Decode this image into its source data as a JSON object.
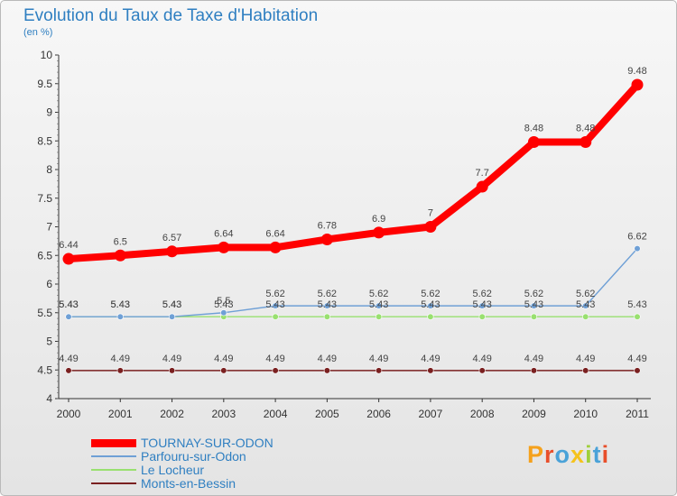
{
  "chart_data": {
    "type": "line",
    "title": "Evolution du Taux de Taxe d'Habitation",
    "subtitle": "(en %)",
    "xlabel": "",
    "ylabel": "(en %)",
    "ylim": [
      4,
      10
    ],
    "yticks": [
      "4",
      "4.5",
      "5",
      "5.5",
      "6",
      "6.5",
      "7",
      "7.5",
      "8",
      "8.5",
      "9",
      "9.5",
      "10"
    ],
    "categories": [
      "2000",
      "2001",
      "2002",
      "2003",
      "2004",
      "2005",
      "2006",
      "2007",
      "2008",
      "2009",
      "2010",
      "2011"
    ],
    "legend_position": "bottom-left",
    "grid": false,
    "series": [
      {
        "name": "TOURNAY-SUR-ODON",
        "color": "#ff0000",
        "values": [
          6.44,
          6.5,
          6.57,
          6.64,
          6.64,
          6.78,
          6.9,
          7,
          7.7,
          8.48,
          8.48,
          9.48
        ],
        "labels": [
          "6.44",
          "6.5",
          "6.57",
          "6.64",
          "6.64",
          "6.78",
          "6.9",
          "7",
          "7.7",
          "8.48",
          "8.48",
          "9.48"
        ]
      },
      {
        "name": "Parfouru-sur-Odon",
        "color": "#6fa0d6",
        "values": [
          5.43,
          5.43,
          5.43,
          5.5,
          5.62,
          5.62,
          5.62,
          5.62,
          5.62,
          5.62,
          5.62,
          6.62
        ],
        "labels": [
          "5.43",
          "5.43",
          "5.43",
          "5.5",
          "5.62",
          "5.62",
          "5.62",
          "5.62",
          "5.62",
          "5.62",
          "5.62",
          "6.62"
        ]
      },
      {
        "name": "Le Locheur",
        "color": "#99e070",
        "values": [
          5.43,
          5.43,
          5.43,
          5.43,
          5.43,
          5.43,
          5.43,
          5.43,
          5.43,
          5.43,
          5.43,
          5.43
        ],
        "labels": [
          "5.43",
          "5.43",
          "5.43",
          "5.43",
          "5.43",
          "5.43",
          "5.43",
          "5.43",
          "5.43",
          "5.43",
          "5.43",
          "5.43"
        ]
      },
      {
        "name": "Monts-en-Bessin",
        "color": "#7a2020",
        "values": [
          4.49,
          4.49,
          4.49,
          4.49,
          4.49,
          4.49,
          4.49,
          4.49,
          4.49,
          4.49,
          4.49,
          4.49
        ],
        "labels": [
          "4.49",
          "4.49",
          "4.49",
          "4.49",
          "4.49",
          "4.49",
          "4.49",
          "4.49",
          "4.49",
          "4.49",
          "4.49",
          "4.49"
        ]
      }
    ]
  },
  "legend": {
    "items": [
      {
        "label": "TOURNAY-SUR-ODON",
        "color": "#ff0000"
      },
      {
        "label": "Parfouru-sur-Odon",
        "color": "#6fa0d6"
      },
      {
        "label": "Le Locheur",
        "color": "#99e070"
      },
      {
        "label": "Monts-en-Bessin",
        "color": "#7a2020"
      }
    ]
  },
  "brand": {
    "letters": [
      "P",
      "r",
      "o",
      "x",
      "i",
      "t",
      "i"
    ],
    "colors": [
      "#f5a11c",
      "#e84f2b",
      "#4aa2d8",
      "#f5c31c",
      "#9fcf3c",
      "#4aa2d8",
      "#e84f2b"
    ]
  }
}
